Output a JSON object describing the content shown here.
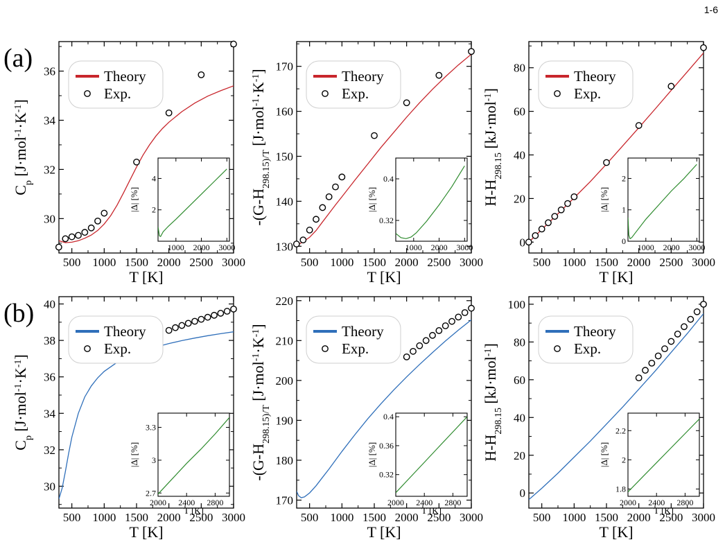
{
  "page_number": "1-6",
  "panel_labels": [
    "(a)",
    "(b)"
  ],
  "colors": {
    "theory_a": "#c8262c",
    "theory_b": "#2f6fba",
    "inset_line": "#2e8b2e",
    "axis": "#000000",
    "legend_border": "#cccccc"
  },
  "chart_data": [
    {
      "id": "a-cp",
      "row": 0,
      "col": 0,
      "type": "line",
      "title": "",
      "xlabel": "T [K]",
      "ylabel": "C_p [J·mol^-1·K^-1]",
      "xlim": [
        300,
        3000
      ],
      "ylim": [
        28.6,
        37.2
      ],
      "xticks": [
        500,
        1000,
        1500,
        2000,
        2500,
        3000
      ],
      "yticks": [
        30,
        32,
        34,
        36
      ],
      "legend": {
        "position": "upper-left",
        "entries": [
          "Theory",
          "Exp."
        ]
      },
      "series": [
        {
          "name": "Theory",
          "kind": "line",
          "color": "#c8262c",
          "x": [
            300,
            400,
            500,
            600,
            700,
            800,
            900,
            1000,
            1100,
            1200,
            1300,
            1400,
            1500,
            1600,
            1700,
            1800,
            1900,
            2000,
            2200,
            2400,
            2600,
            2800,
            3000
          ],
          "y": [
            29.1,
            29.02,
            29.04,
            29.1,
            29.2,
            29.33,
            29.52,
            29.78,
            30.12,
            30.55,
            31.05,
            31.58,
            32.1,
            32.58,
            33.0,
            33.36,
            33.66,
            33.92,
            34.35,
            34.7,
            34.98,
            35.2,
            35.4
          ]
        },
        {
          "name": "Exp.",
          "kind": "marker",
          "x": [
            298,
            400,
            500,
            600,
            700,
            800,
            900,
            1000,
            1500,
            2000,
            2500,
            3000
          ],
          "y": [
            28.84,
            29.18,
            29.26,
            29.32,
            29.44,
            29.62,
            29.9,
            30.22,
            32.3,
            34.3,
            35.85,
            37.1
          ]
        }
      ],
      "inset": {
        "xlim": [
          298,
          3100
        ],
        "ylim": [
          0,
          5.3
        ],
        "xticks": [
          1000,
          2000,
          3000
        ],
        "yticks": [
          2,
          4
        ],
        "ylabel": "|Δ| [%]",
        "xlabel": "",
        "x": [
          300,
          350,
          400,
          500,
          700,
          1000,
          1500,
          2000,
          2500,
          3000
        ],
        "y": [
          0.9,
          0.35,
          0.3,
          0.6,
          0.95,
          1.4,
          2.2,
          3.0,
          3.8,
          4.6
        ]
      }
    },
    {
      "id": "a-g",
      "row": 0,
      "col": 1,
      "type": "line",
      "title": "",
      "xlabel": "T [K]",
      "ylabel": "-(G-H_298.15)/T [J·mol^-1·K^-1]",
      "xlim": [
        300,
        3000
      ],
      "ylim": [
        128.5,
        175.5
      ],
      "xticks": [
        500,
        1000,
        1500,
        2000,
        2500,
        3000
      ],
      "yticks": [
        130,
        140,
        150,
        160,
        170
      ],
      "legend": {
        "position": "upper-left",
        "entries": [
          "Theory",
          "Exp."
        ]
      },
      "series": [
        {
          "name": "Theory",
          "kind": "line",
          "color": "#c8262c",
          "x": [
            300,
            400,
            500,
            600,
            700,
            800,
            900,
            1000,
            1200,
            1400,
            1600,
            1800,
            2000,
            2200,
            2400,
            2600,
            2800,
            3000
          ],
          "y": [
            130.2,
            131.0,
            132.0,
            133.5,
            135.4,
            137.3,
            139.2,
            141.0,
            144.7,
            148.3,
            151.9,
            155.3,
            158.7,
            161.9,
            164.9,
            167.7,
            170.3,
            172.7
          ]
        },
        {
          "name": "Exp.",
          "kind": "marker",
          "x": [
            298,
            400,
            500,
            600,
            700,
            800,
            900,
            1000,
            1500,
            2000,
            2500,
            3000
          ],
          "y": [
            130.5,
            131.4,
            133.6,
            136.0,
            138.6,
            141.0,
            143.2,
            145.4,
            154.6,
            161.9,
            168.0,
            173.3
          ]
        }
      ],
      "inset": {
        "xlim": [
          298,
          3100
        ],
        "ylim": [
          0.28,
          0.44
        ],
        "xticks": [
          1000,
          2000,
          3000
        ],
        "yticks": [
          0.32,
          0.4
        ],
        "ylabel": "|Δ| [%]",
        "xlabel": "",
        "x": [
          300,
          500,
          700,
          900,
          1100,
          1500,
          2000,
          2500,
          3000
        ],
        "y": [
          0.295,
          0.287,
          0.285,
          0.288,
          0.296,
          0.318,
          0.35,
          0.385,
          0.425
        ]
      }
    },
    {
      "id": "a-h",
      "row": 0,
      "col": 2,
      "type": "line",
      "title": "",
      "xlabel": "T [K]",
      "ylabel": "H-H_298.15 [kJ·mol^-1]",
      "xlim": [
        300,
        3000
      ],
      "ylim": [
        -5,
        92
      ],
      "xticks": [
        500,
        1000,
        1500,
        2000,
        2500,
        3000
      ],
      "yticks": [
        0,
        20,
        40,
        60,
        80
      ],
      "legend": {
        "position": "upper-left",
        "entries": [
          "Theory",
          "Exp."
        ]
      },
      "series": [
        {
          "name": "Theory",
          "kind": "line",
          "color": "#c8262c",
          "x": [
            300,
            500,
            750,
            1000,
            1250,
            1500,
            1750,
            2000,
            2250,
            2500,
            2750,
            3000
          ],
          "y": [
            0,
            5.8,
            13.0,
            20.3,
            27.8,
            35.8,
            44.1,
            52.5,
            61.0,
            69.6,
            78.2,
            86.8
          ]
        },
        {
          "name": "Exp.",
          "kind": "marker",
          "x": [
            298,
            400,
            500,
            600,
            700,
            800,
            900,
            1000,
            1500,
            2000,
            2500,
            3000
          ],
          "y": [
            0,
            3.0,
            6.0,
            8.9,
            11.8,
            14.8,
            17.7,
            20.8,
            36.5,
            53.5,
            71.5,
            89.2
          ]
        }
      ],
      "inset": {
        "xlim": [
          298,
          3100
        ],
        "ylim": [
          0,
          2.65
        ],
        "xticks": [
          1000,
          2000,
          3000
        ],
        "yticks": [
          0,
          1,
          2
        ],
        "ylabel": "|Δ| [%]",
        "xlabel": "",
        "x": [
          300,
          330,
          380,
          450,
          600,
          1000,
          1500,
          2000,
          2500,
          3000
        ],
        "y": [
          0.75,
          0.2,
          0.08,
          0.12,
          0.28,
          0.7,
          1.15,
          1.6,
          2.0,
          2.45
        ]
      }
    },
    {
      "id": "b-cp",
      "row": 1,
      "col": 0,
      "type": "line",
      "title": "",
      "xlabel": "T [K]",
      "ylabel": "C_p [J·mol^-1·K^-1]",
      "xlim": [
        300,
        3000
      ],
      "ylim": [
        28.8,
        40.4
      ],
      "xticks": [
        500,
        1000,
        1500,
        2000,
        2500,
        3000
      ],
      "yticks": [
        30,
        32,
        34,
        36,
        38,
        40
      ],
      "legend": {
        "position": "upper-left",
        "entries": [
          "Theory",
          "Exp."
        ]
      },
      "series": [
        {
          "name": "Theory",
          "kind": "line",
          "color": "#2f6fba",
          "x": [
            300,
            350,
            400,
            450,
            500,
            600,
            700,
            800,
            900,
            1000,
            1200,
            1400,
            1600,
            1800,
            2000,
            2200,
            2400,
            2600,
            2800,
            3000
          ],
          "y": [
            29.3,
            29.9,
            30.8,
            31.8,
            32.7,
            34.0,
            34.9,
            35.5,
            35.95,
            36.3,
            36.8,
            37.15,
            37.42,
            37.64,
            37.83,
            37.99,
            38.13,
            38.26,
            38.37,
            38.47
          ]
        },
        {
          "name": "Exp.",
          "kind": "marker",
          "x": [
            2000,
            2100,
            2200,
            2300,
            2400,
            2500,
            2600,
            2700,
            2800,
            2900,
            3000
          ],
          "y": [
            38.55,
            38.7,
            38.82,
            38.94,
            39.05,
            39.16,
            39.27,
            39.38,
            39.49,
            39.6,
            39.72
          ]
        }
      ],
      "inset": {
        "xlim": [
          2000,
          3000
        ],
        "ylim": [
          2.67,
          3.43
        ],
        "xticks": [
          2000,
          2400,
          2800
        ],
        "yticks": [
          2.7,
          3.0,
          3.3
        ],
        "ylabel": "|Δ| [%]",
        "xlabel": "T [K]",
        "x": [
          2000,
          2200,
          2400,
          2600,
          2800,
          3000
        ],
        "y": [
          2.69,
          2.83,
          2.97,
          3.1,
          3.24,
          3.39
        ]
      }
    },
    {
      "id": "b-g",
      "row": 1,
      "col": 1,
      "type": "line",
      "title": "",
      "xlabel": "T [K]",
      "ylabel": "-(G-H_298.15)/T [J·mol^-1·K^-1]",
      "xlim": [
        300,
        3000
      ],
      "ylim": [
        168,
        221
      ],
      "xticks": [
        500,
        1000,
        1500,
        2000,
        2500,
        3000
      ],
      "yticks": [
        170,
        180,
        190,
        200,
        210,
        220
      ],
      "legend": {
        "position": "upper-left",
        "entries": [
          "Theory",
          "Exp."
        ]
      },
      "series": [
        {
          "name": "Theory",
          "kind": "line",
          "color": "#2f6fba",
          "x": [
            300,
            330,
            370,
            420,
            500,
            600,
            700,
            800,
            1000,
            1200,
            1400,
            1600,
            1800,
            2000,
            2200,
            2400,
            2600,
            2800,
            3000
          ],
          "y": [
            172.2,
            171.1,
            170.6,
            170.8,
            171.8,
            173.6,
            175.7,
            177.8,
            182.2,
            186.4,
            190.4,
            194.1,
            197.6,
            200.9,
            204.0,
            207.0,
            209.9,
            212.6,
            215.2
          ]
        },
        {
          "name": "Exp.",
          "kind": "marker",
          "x": [
            2000,
            2100,
            2200,
            2300,
            2400,
            2500,
            2600,
            2700,
            2800,
            2900,
            3000
          ],
          "y": [
            205.9,
            207.3,
            208.7,
            210.0,
            211.3,
            212.5,
            213.7,
            214.8,
            215.9,
            217.0,
            218.1
          ]
        }
      ],
      "inset": {
        "xlim": [
          2000,
          3000
        ],
        "ylim": [
          0.29,
          0.405
        ],
        "xticks": [
          2000,
          2400,
          2800
        ],
        "yticks": [
          0.32,
          0.36,
          0.4
        ],
        "ylabel": "|Δ| [%]",
        "xlabel": "T [K]",
        "x": [
          2000,
          2200,
          2400,
          2600,
          2800,
          3000
        ],
        "y": [
          0.295,
          0.316,
          0.337,
          0.358,
          0.379,
          0.4
        ]
      }
    },
    {
      "id": "b-h",
      "row": 1,
      "col": 2,
      "type": "line",
      "title": "",
      "xlabel": "T [K]",
      "ylabel": "H-H_298.15 [kJ·mol^-1]",
      "xlim": [
        300,
        3000
      ],
      "ylim": [
        -8,
        104
      ],
      "xticks": [
        500,
        1000,
        1500,
        2000,
        2500,
        3000
      ],
      "yticks": [
        0,
        20,
        40,
        60,
        80,
        100
      ],
      "legend": {
        "position": "upper-left",
        "entries": [
          "Theory",
          "Exp."
        ]
      },
      "series": [
        {
          "name": "Theory",
          "kind": "line",
          "color": "#2f6fba",
          "x": [
            300,
            500,
            750,
            1000,
            1250,
            1500,
            1750,
            2000,
            2250,
            2500,
            2750,
            3000
          ],
          "y": [
            -3.5,
            2.5,
            10.5,
            19.0,
            27.5,
            36.5,
            45.5,
            55.0,
            64.5,
            74.5,
            84.5,
            95.0
          ]
        },
        {
          "name": "Exp.",
          "kind": "marker",
          "x": [
            2000,
            2100,
            2200,
            2300,
            2400,
            2500,
            2600,
            2700,
            2800,
            2900,
            3000
          ],
          "y": [
            61.0,
            65.0,
            68.8,
            72.6,
            76.4,
            80.3,
            84.2,
            88.1,
            92.0,
            96.0,
            100.0
          ]
        }
      ],
      "inset": {
        "xlim": [
          2000,
          3000
        ],
        "ylim": [
          1.75,
          2.32
        ],
        "xticks": [
          2000,
          2400,
          2800
        ],
        "yticks": [
          1.8,
          2.0,
          2.2
        ],
        "ylabel": "|Δ| [%]",
        "xlabel": "T [K]",
        "x": [
          2000,
          2200,
          2400,
          2600,
          2800,
          3000
        ],
        "y": [
          1.78,
          1.88,
          1.98,
          2.08,
          2.18,
          2.28
        ]
      }
    }
  ]
}
